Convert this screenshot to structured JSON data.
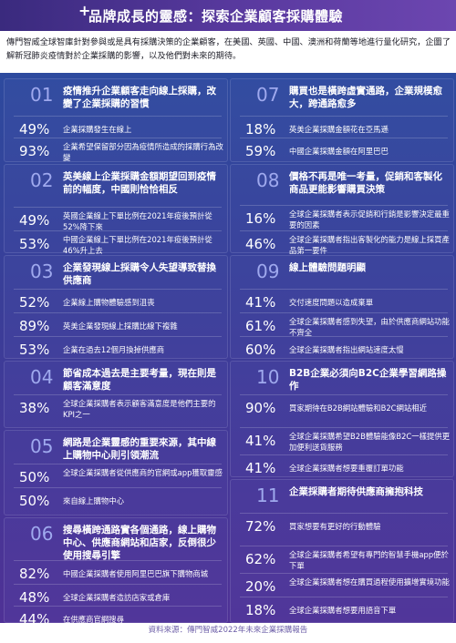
{
  "header": {
    "title": "品牌成長的靈感：探索企業顧客採購體驗",
    "plus_icon": "plus-icon"
  },
  "intro": "傳門智威全球智庫針對參與或是具有採購決策的企業顧客，在美國、英國、中國、澳洲和荷蘭等地進行量化研究，企圖了解新冠肺炎疫情對於企業採購的影響，以及他們對未來的期待。",
  "left_sections": [
    {
      "num": "01",
      "heading": "疫情推升企業顧客走向線上採購，改變了企業採購的習慣",
      "stats": [
        {
          "pct": "49%",
          "text": "企業採購發生在線上"
        },
        {
          "pct": "93%",
          "text": "企業希望保留部分因為疫情所造成的採購行為改變"
        }
      ]
    },
    {
      "num": "02",
      "heading": "英美線上企業採購金額期望回到疫情前的幅度，中國則恰恰相反",
      "stats": [
        {
          "pct": "49%",
          "text": "英國企業線上下單比例在2021年疫後預計從52%降下來"
        },
        {
          "pct": "53%",
          "text": "中國企業線上下單比例在2021年疫後預計從46%升上去"
        }
      ]
    },
    {
      "num": "03",
      "heading": "企業發現線上採購令人失望導致替換供應商",
      "stats": [
        {
          "pct": "52%",
          "text": "企業線上購物體驗感到沮喪"
        },
        {
          "pct": "89%",
          "text": "英美企業發現線上採購比線下複雜"
        },
        {
          "pct": "53%",
          "text": "企業在過去12個月換掉供應商"
        }
      ]
    },
    {
      "num": "04",
      "heading": "節省成本過去是主要考量，現在則是顧客滿意度",
      "stats": [
        {
          "pct": "38%",
          "text": "全球企業採購者表示顧客滿意度是他們主要的KPI之一"
        }
      ]
    },
    {
      "num": "05",
      "heading": "網路是企業靈感的重要來源，其中線上購物中心則引領潮流",
      "stats": [
        {
          "pct": "50%",
          "text": "全球企業採購者從供應商的官網或app獲取靈感"
        },
        {
          "pct": "50%",
          "text": "來自線上購物中心"
        }
      ]
    },
    {
      "num": "06",
      "heading": "搜尋橫跨通路實各個通路，線上購物中心、供應商網站和店家，反倒很少使用搜尋引擎",
      "stats": [
        {
          "pct": "82%",
          "text": "中國企業採購者使用阿里巴巴旗下購物商城"
        },
        {
          "pct": "48%",
          "text": "全球企業採購者造訪店家或倉庫"
        },
        {
          "pct": "44%",
          "text": "在供應商官網搜尋"
        }
      ]
    }
  ],
  "right_sections": [
    {
      "num": "07",
      "heading": "購買也是橫跨虛實通路，企業規模愈大，跨通路愈多",
      "stats": [
        {
          "pct": "18%",
          "text": "英美企業採購金額花在亞馬遜"
        },
        {
          "pct": "59%",
          "text": "中國企業採購金額在阿里巴巴"
        }
      ]
    },
    {
      "num": "08",
      "heading": "價格不再是唯一考量，促銷和客製化商品更能影響購買決策",
      "stats": [
        {
          "pct": "16%",
          "text": "全球企業採購者表示促銷和行銷是影響決定最重要的因素"
        },
        {
          "pct": "46%",
          "text": "全球企業採購者指出客製化的能力是線上採買產品第一要件"
        }
      ]
    },
    {
      "num": "09",
      "heading": "線上體驗問題明顯",
      "stats": [
        {
          "pct": "41%",
          "text": "交付速度問題以造成棄單"
        },
        {
          "pct": "61%",
          "text": "全球企業採購者感到失望，由於供應商網站功能不齊全"
        },
        {
          "pct": "60%",
          "text": "全球企業採購者指出網站速度太慢"
        }
      ]
    },
    {
      "num": "10",
      "heading": "B2B企業必須向B2C企業學習網路操作",
      "stats": [
        {
          "pct": "90%",
          "text": "買家期待在B2B網站體驗和B2C網站相近"
        },
        {
          "pct": "41%",
          "text": "全球企業採購希望B2B體驗能像B2C一樣提供更加便利送貨服務"
        },
        {
          "pct": "41%",
          "text": "全球企業採購者想要重覆訂單功能"
        }
      ]
    },
    {
      "num": "11",
      "heading": "企業採購者期待供應商擁抱科技",
      "stats": [
        {
          "pct": "72%",
          "text": "買家想要有更好的行動體驗"
        },
        {
          "pct": "62%",
          "text": "全球企業採購者希望有專門的智慧手機app便於下單"
        },
        {
          "pct": "20%",
          "text": "全球企業採購者想在購買過程使用擴增實境功能"
        },
        {
          "pct": "18%",
          "text": "全球企業採購者想要用語音下單"
        }
      ]
    }
  ],
  "footer": "資料來源：傳門智威2022年未來企業採購報告"
}
